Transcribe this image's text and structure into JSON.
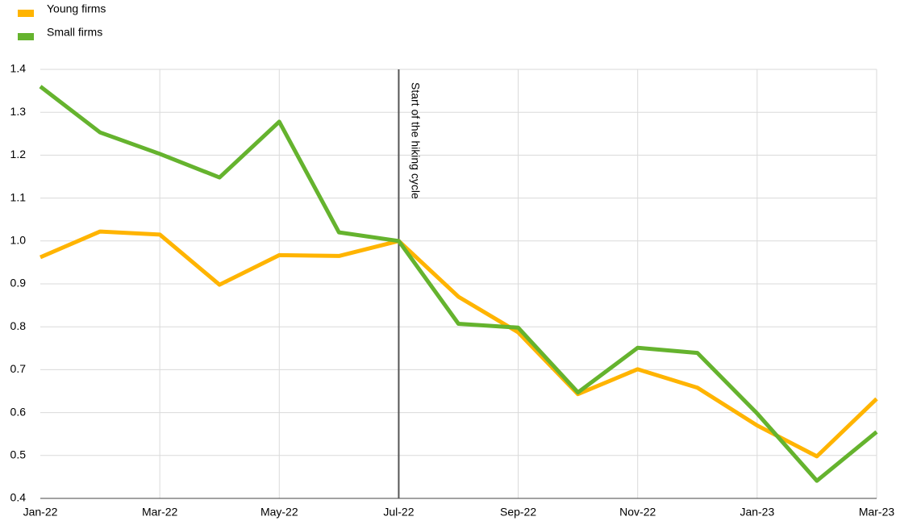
{
  "chart_data": {
    "type": "line",
    "categories": [
      "Jan-22",
      null,
      "Mar-22",
      null,
      "May-22",
      null,
      "Jul-22",
      null,
      "Sep-22",
      null,
      "Nov-22",
      null,
      "Jan-23",
      null,
      "Mar-23"
    ],
    "series": [
      {
        "name": "Young firms",
        "color": "#ffb400",
        "values": [
          0.962,
          1.022,
          1.015,
          0.898,
          0.967,
          0.965,
          1.0,
          0.87,
          0.787,
          0.643,
          0.701,
          0.658,
          0.57,
          0.498,
          0.632
        ]
      },
      {
        "name": "Small firms",
        "color": "#65b32e",
        "values": [
          1.36,
          1.253,
          1.203,
          1.148,
          1.278,
          1.02,
          1.0,
          0.807,
          0.798,
          0.647,
          0.751,
          0.739,
          0.598,
          0.441,
          0.555
        ]
      }
    ],
    "ylim": [
      0.4,
      1.4
    ],
    "yticks": [
      0.4,
      0.5,
      0.6,
      0.7,
      0.8,
      0.9,
      {
        "value": 1.0,
        "label": "1.0"
      },
      1.1,
      1.2,
      1.3,
      1.4
    ],
    "grid": true,
    "legend": "top-left",
    "annotation": {
      "label": "Start of the hiking cycle",
      "category": "Jul-22"
    }
  }
}
